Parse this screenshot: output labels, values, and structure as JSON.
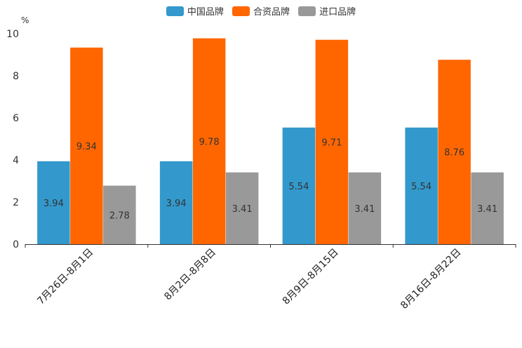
{
  "chart_data": {
    "type": "bar",
    "title": "",
    "unit_label": "%",
    "xlabel": "",
    "ylabel": "%",
    "ylim": [
      0,
      10
    ],
    "yticks": [
      0,
      2,
      4,
      6,
      8,
      10
    ],
    "legend_position": "top-center",
    "categories": [
      "7月26日-8月1日",
      "8月2日-8月8日",
      "8月9日-8月15日",
      "8月16日-8月22日"
    ],
    "series": [
      {
        "name": "中国品牌",
        "color": "#3399cc",
        "values": [
          3.94,
          3.94,
          5.54,
          5.54
        ]
      },
      {
        "name": "合资品牌",
        "color": "#ff6600",
        "values": [
          9.34,
          9.78,
          9.71,
          8.76
        ]
      },
      {
        "name": "进口品牌",
        "color": "#999999",
        "values": [
          2.78,
          3.41,
          3.41,
          3.41
        ]
      }
    ]
  }
}
